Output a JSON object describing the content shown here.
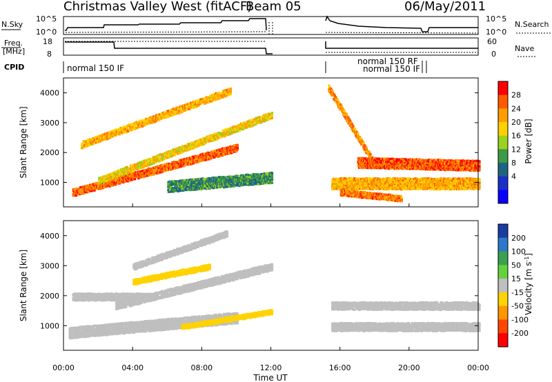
{
  "header": {
    "title": "Christmas Valley West (fitACF)",
    "beam": "Beam 05",
    "date": "06/May/2011"
  },
  "top_panels": {
    "nsky_label": "N.Sky",
    "nsearch_label": "N.Search",
    "freq_label_1": "Freq.",
    "freq_label_2": "[MHz]",
    "nave_label": "Nave",
    "cpid_label": "CPID",
    "left_ticks": {
      "nsky": [
        "10^5",
        "10^0"
      ],
      "freq": [
        "18",
        "8"
      ]
    },
    "right_ticks": {
      "nsearch": [
        "10^5",
        "10^0"
      ],
      "nave": [
        "60",
        "0"
      ]
    },
    "cpid_entries": [
      "normal 150 IF",
      "normal 150 RF",
      "normal 150 IF"
    ]
  },
  "colorbars": {
    "power": {
      "label": "Power [dB]",
      "ticks": [
        "28",
        "24",
        "20",
        "16",
        "12",
        "8",
        "4"
      ],
      "colors": [
        "#ff0000",
        "#ff5a00",
        "#ff9d00",
        "#ffd000",
        "#9bd21e",
        "#3c9b46",
        "#1e6482",
        "#1a2fc8",
        "#0a00ff"
      ]
    },
    "velocity": {
      "label_main": "Velocity",
      "label_unit": "[m s",
      "label_exp": "-1",
      "label_close": "]",
      "ticks": [
        "200",
        "100",
        "50",
        "15",
        "-15",
        "-50",
        "-100",
        "-200"
      ],
      "colors": [
        "#1a3ca0",
        "#2e78c8",
        "#3ca050",
        "#64d23c",
        "#bfbfbf",
        "#ffd200",
        "#ff9600",
        "#ff4600",
        "#ff0000"
      ]
    }
  },
  "chart_data": {
    "type": "heatmap",
    "xlabel": "Time UT",
    "x_ticks": [
      "00:00",
      "04:00",
      "08:00",
      "12:00",
      "16:00",
      "20:00",
      "00:00"
    ],
    "xlim_hours": [
      0,
      24
    ],
    "ylabel": "Slant Range [km]",
    "y_ticks": [
      1000,
      2000,
      3000,
      4000
    ],
    "ylim_km": [
      180,
      4500
    ],
    "data_gap_hours": [
      12.1,
      15.2
    ],
    "panels": [
      {
        "name": "Power",
        "unit": "dB",
        "bands": [
          {
            "t": [
              0.5,
              10
            ],
            "r_start": 700,
            "r_end": 2200,
            "width": 260,
            "value": 26
          },
          {
            "t": [
              1,
              9.6
            ],
            "r_start": 2300,
            "r_end": 4100,
            "width": 240,
            "value": 22
          },
          {
            "t": [
              2,
              12
            ],
            "r_start": 1100,
            "r_end": 3300,
            "width": 240,
            "value": 20
          },
          {
            "t": [
              6,
              12
            ],
            "r_start": 900,
            "r_end": 1200,
            "width": 380,
            "value": 12
          },
          {
            "t": [
              15.3,
              17.8
            ],
            "r_start": 4200,
            "r_end": 1800,
            "width": 220,
            "value": 24
          },
          {
            "t": [
              17,
              24
            ],
            "r_start": 1700,
            "r_end": 1600,
            "width": 360,
            "value": 27
          },
          {
            "t": [
              15.5,
              24
            ],
            "r_start": 1000,
            "r_end": 1000,
            "width": 400,
            "value": 22
          },
          {
            "t": [
              16,
              19.5
            ],
            "r_start": 700,
            "r_end": 500,
            "width": 220,
            "value": 25
          }
        ]
      },
      {
        "name": "Velocity",
        "unit": "m s-1",
        "bands": [
          {
            "t": [
              0.3,
              10
            ],
            "r_start": 800,
            "r_end": 1300,
            "width": 380,
            "value": 0
          },
          {
            "t": [
              0.5,
              5
            ],
            "r_start": 2000,
            "r_end": 2000,
            "width": 260,
            "value": 0
          },
          {
            "t": [
              3,
              12
            ],
            "r_start": 1700,
            "r_end": 3000,
            "width": 260,
            "value": 0
          },
          {
            "t": [
              4,
              9.4
            ],
            "r_start": 3000,
            "r_end": 4100,
            "width": 220,
            "value": 0
          },
          {
            "t": [
              4,
              8.4
            ],
            "r_start": 2500,
            "r_end": 3000,
            "width": 200,
            "value": -30
          },
          {
            "t": [
              6.8,
              12
            ],
            "r_start": 1000,
            "r_end": 1500,
            "width": 180,
            "value": -40
          },
          {
            "t": [
              15.5,
              24
            ],
            "r_start": 1700,
            "r_end": 1700,
            "width": 280,
            "value": 0
          },
          {
            "t": [
              15.5,
              24
            ],
            "r_start": 1000,
            "r_end": 1000,
            "width": 300,
            "value": 0
          }
        ]
      }
    ]
  }
}
